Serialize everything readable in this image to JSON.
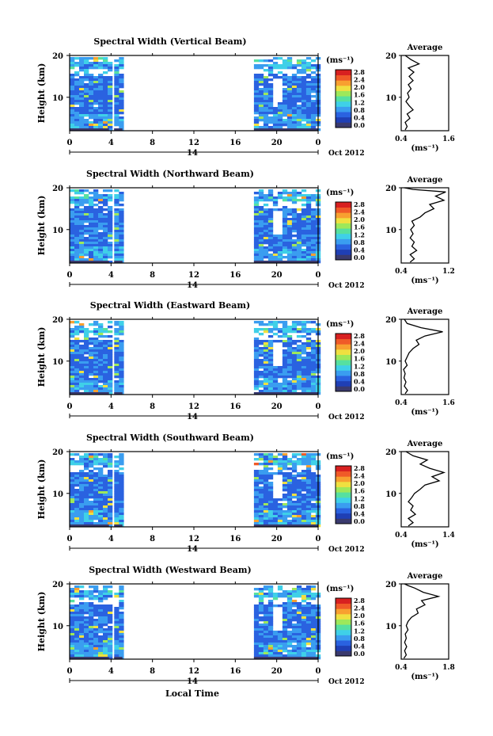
{
  "panels": [
    {
      "title": "Spectral Width (Vertical Beam)",
      "ylabel": "Height (km)",
      "avg_title": "Average",
      "avg_xticks": [
        "0.4",
        "1.6"
      ],
      "avg_xlim": [
        0.4,
        1.6
      ],
      "avg_profile": [
        [
          0.5,
          2.2
        ],
        [
          0.55,
          3
        ],
        [
          0.5,
          4
        ],
        [
          0.62,
          5
        ],
        [
          0.55,
          6
        ],
        [
          0.7,
          7
        ],
        [
          0.6,
          8
        ],
        [
          0.52,
          9
        ],
        [
          0.6,
          10
        ],
        [
          0.56,
          11
        ],
        [
          0.65,
          12
        ],
        [
          0.58,
          13
        ],
        [
          0.7,
          14
        ],
        [
          0.6,
          15
        ],
        [
          0.72,
          16
        ],
        [
          0.58,
          17
        ],
        [
          0.85,
          18
        ],
        [
          0.65,
          19
        ],
        [
          0.5,
          20
        ]
      ]
    },
    {
      "title": "Spectral Width (Northward Beam)",
      "ylabel": "Height (km)",
      "avg_title": "Average",
      "avg_xticks": [
        "0.4",
        "1.2"
      ],
      "avg_xlim": [
        0.4,
        1.2
      ],
      "avg_profile": [
        [
          0.55,
          2.2
        ],
        [
          0.62,
          3
        ],
        [
          0.55,
          4
        ],
        [
          0.66,
          5
        ],
        [
          0.58,
          6
        ],
        [
          0.62,
          7
        ],
        [
          0.55,
          8
        ],
        [
          0.6,
          9
        ],
        [
          0.56,
          10
        ],
        [
          0.62,
          11
        ],
        [
          0.58,
          12
        ],
        [
          0.72,
          13
        ],
        [
          0.8,
          14
        ],
        [
          0.95,
          15
        ],
        [
          0.88,
          16
        ],
        [
          1.12,
          17
        ],
        [
          0.98,
          18
        ],
        [
          1.15,
          19
        ],
        [
          0.6,
          19.6
        ],
        [
          0.45,
          20
        ]
      ]
    },
    {
      "title": "Spectral Width (Eastward Beam)",
      "ylabel": "Height (km)",
      "avg_title": "Average",
      "avg_xticks": [
        "0.4",
        "1.6"
      ],
      "avg_xlim": [
        0.4,
        1.6
      ],
      "avg_profile": [
        [
          0.5,
          2.2
        ],
        [
          0.56,
          3
        ],
        [
          0.48,
          4
        ],
        [
          0.52,
          5
        ],
        [
          0.47,
          6
        ],
        [
          0.5,
          7
        ],
        [
          0.46,
          8
        ],
        [
          0.55,
          9
        ],
        [
          0.5,
          10
        ],
        [
          0.55,
          11
        ],
        [
          0.6,
          12
        ],
        [
          0.7,
          13
        ],
        [
          0.85,
          14
        ],
        [
          0.78,
          15
        ],
        [
          1.0,
          16
        ],
        [
          1.45,
          17
        ],
        [
          0.9,
          18
        ],
        [
          0.55,
          19
        ],
        [
          0.48,
          20
        ]
      ]
    },
    {
      "title": "Spectral Width (Southward Beam)",
      "ylabel": "Height (km)",
      "avg_title": "Average",
      "avg_xticks": [
        "0.4",
        "1.4"
      ],
      "avg_xlim": [
        0.4,
        1.4
      ],
      "avg_profile": [
        [
          0.55,
          2.2
        ],
        [
          0.65,
          3
        ],
        [
          0.55,
          4
        ],
        [
          0.7,
          5
        ],
        [
          0.6,
          6
        ],
        [
          0.65,
          7
        ],
        [
          0.55,
          8
        ],
        [
          0.62,
          9
        ],
        [
          0.68,
          10
        ],
        [
          0.8,
          11
        ],
        [
          0.9,
          12
        ],
        [
          1.2,
          13
        ],
        [
          1.05,
          14
        ],
        [
          1.3,
          15
        ],
        [
          1.0,
          16
        ],
        [
          0.8,
          17
        ],
        [
          0.95,
          18
        ],
        [
          0.65,
          19
        ],
        [
          0.5,
          20
        ]
      ]
    },
    {
      "title": "Spectral Width (Westward Beam)",
      "ylabel": "Height (km)",
      "avg_title": "Average",
      "avg_xticks": [
        "0.4",
        "1.8"
      ],
      "avg_xlim": [
        0.4,
        1.8
      ],
      "avg_profile": [
        [
          0.48,
          2.2
        ],
        [
          0.55,
          3
        ],
        [
          0.5,
          4
        ],
        [
          0.56,
          5
        ],
        [
          0.5,
          6
        ],
        [
          0.55,
          7
        ],
        [
          0.52,
          8
        ],
        [
          0.6,
          9
        ],
        [
          0.55,
          10
        ],
        [
          0.6,
          11
        ],
        [
          0.7,
          12
        ],
        [
          0.9,
          13
        ],
        [
          0.85,
          14
        ],
        [
          1.1,
          15
        ],
        [
          1.0,
          16
        ],
        [
          1.5,
          17
        ],
        [
          1.05,
          18
        ],
        [
          0.8,
          19
        ],
        [
          0.6,
          19.6
        ],
        [
          0.5,
          20
        ]
      ]
    }
  ],
  "common": {
    "yticks": [
      "10",
      "20"
    ],
    "xticks": [
      "0",
      "4",
      "8",
      "12",
      "16",
      "20",
      "0"
    ],
    "date_day": "14",
    "date_label": "Oct 2012",
    "cbar_unit": "(ms⁻¹)",
    "cbar_ticks": [
      "0.0",
      "0.4",
      "0.8",
      "1.2",
      "1.6",
      "2.0",
      "2.4",
      "2.8"
    ],
    "avg_unit": "(ms⁻¹)",
    "xlabel": "Local Time"
  },
  "chart_data": {
    "type": "heatmap",
    "title": "Spectral Width",
    "panels": [
      "Vertical Beam",
      "Northward Beam",
      "Eastward Beam",
      "Southward Beam",
      "Westward Beam"
    ],
    "xlabel": "Local Time",
    "ylabel": "Height (km)",
    "xlim": [
      0,
      24
    ],
    "ylim": [
      2,
      20
    ],
    "colorbar": {
      "unit": "ms-1",
      "range": [
        0.0,
        2.8
      ]
    },
    "data_coverage_hours": [
      [
        0,
        3.8
      ],
      [
        4.3,
        5.1
      ],
      [
        17.8,
        24
      ]
    ],
    "colors": [
      "#3a3a6e",
      "#1f3fb5",
      "#2a62e0",
      "#3a9df0",
      "#3fd0e8",
      "#56e0a0",
      "#9ee85a",
      "#f0e040",
      "#f8a030",
      "#f05a28",
      "#d82020"
    ]
  }
}
